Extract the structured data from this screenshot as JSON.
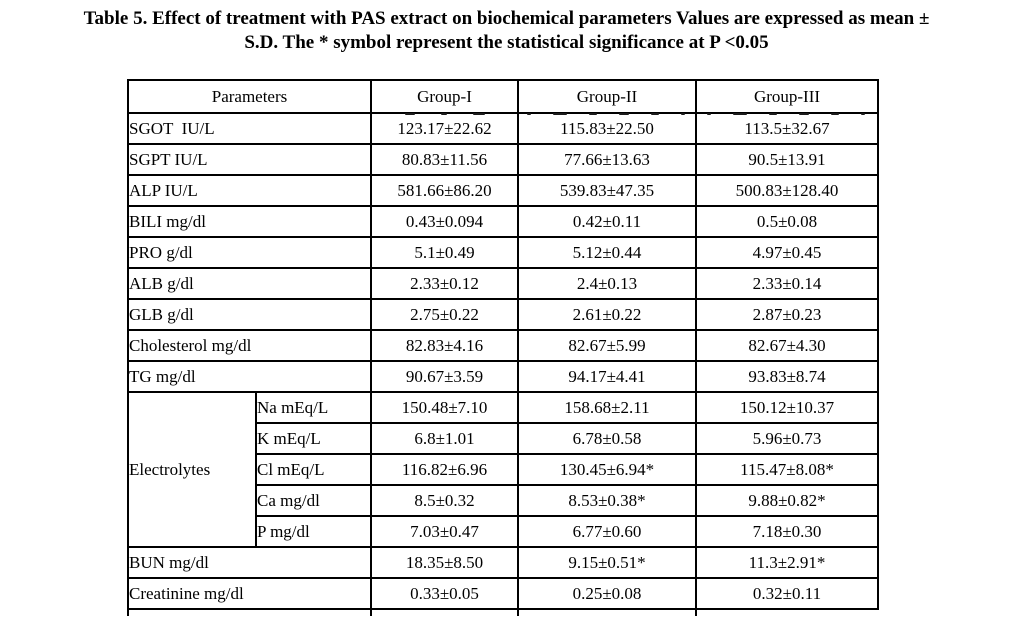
{
  "title": {
    "line1": "Table 5. Effect of treatment with PAS extract on biochemical parameters Values are expressed as mean ±",
    "line2": "S.D. The * symbol represent the statistical significance at P <0.05"
  },
  "table": {
    "header": {
      "parameters_label": "Parameters",
      "groups": [
        "Group-I",
        "Group-II",
        "Group-III"
      ]
    },
    "electrolytes_label": "Electrolytes",
    "rows": [
      {
        "label": "SGOT  IU/L",
        "type": "full",
        "values": [
          "123.17±22.62",
          "115.83±22.50",
          "113.5±32.67"
        ]
      },
      {
        "label": "SGPT IU/L",
        "type": "full",
        "values": [
          "80.83±11.56",
          "77.66±13.63",
          "90.5±13.91"
        ]
      },
      {
        "label": "ALP IU/L",
        "type": "full",
        "values": [
          "581.66±86.20",
          "539.83±47.35",
          "500.83±128.40"
        ]
      },
      {
        "label": "BILI mg/dl",
        "type": "full",
        "values": [
          "0.43±0.094",
          "0.42±0.11",
          "0.5±0.08"
        ]
      },
      {
        "label": "PRO g/dl",
        "type": "full",
        "values": [
          "5.1±0.49",
          "5.12±0.44",
          "4.97±0.45"
        ]
      },
      {
        "label": "ALB g/dl",
        "type": "full",
        "values": [
          "2.33±0.12",
          "2.4±0.13",
          "2.33±0.14"
        ]
      },
      {
        "label": "GLB g/dl",
        "type": "full",
        "values": [
          "2.75±0.22",
          "2.61±0.22",
          "2.87±0.23"
        ]
      },
      {
        "label": "Cholesterol mg/dl",
        "type": "full",
        "values": [
          "82.83±4.16",
          "82.67±5.99",
          "82.67±4.30"
        ]
      },
      {
        "label": "TG mg/dl",
        "type": "full",
        "values": [
          "90.67±3.59",
          "94.17±4.41",
          "93.83±8.74"
        ]
      },
      {
        "label": "Na mEq/L",
        "type": "sub",
        "values": [
          "150.48±7.10",
          "158.68±2.11",
          "150.12±10.37"
        ]
      },
      {
        "label": "K mEq/L",
        "type": "sub",
        "values": [
          "6.8±1.01",
          "6.78±0.58",
          "5.96±0.73"
        ]
      },
      {
        "label": "Cl mEq/L",
        "type": "sub",
        "values": [
          "116.82±6.96",
          "130.45±6.94*",
          "115.47±8.08*"
        ]
      },
      {
        "label": "Ca mg/dl",
        "type": "sub",
        "values": [
          "8.5±0.32",
          "8.53±0.38*",
          "9.88±0.82*"
        ]
      },
      {
        "label": "P mg/dl",
        "type": "sub",
        "values": [
          "7.03±0.47",
          "6.77±0.60",
          "7.18±0.30"
        ]
      },
      {
        "label": "BUN mg/dl",
        "type": "full",
        "values": [
          "18.35±8.50",
          "9.15±0.51*",
          "11.3±2.91*"
        ]
      },
      {
        "label": "Creatinine mg/dl",
        "type": "full",
        "values": [
          "0.33±0.05",
          "0.25±0.08",
          "0.32±0.11"
        ]
      }
    ]
  }
}
